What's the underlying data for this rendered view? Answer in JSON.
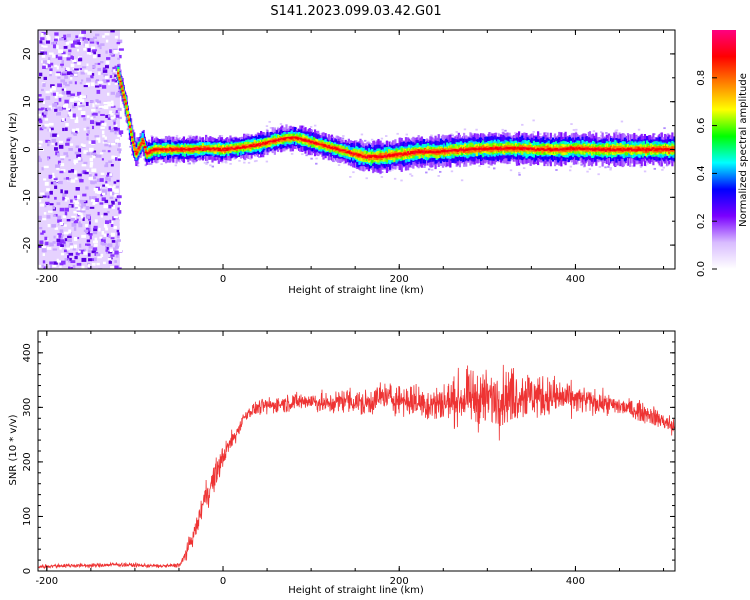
{
  "title": "S141.2023.099.03.42.G01",
  "chart_data": [
    {
      "type": "heatmap",
      "xlabel": "Height of straight line (km)",
      "ylabel": "Frequency (Hz)",
      "xlim": [
        -210,
        513
      ],
      "ylim": [
        -25,
        25
      ],
      "xticks": [
        -200,
        0,
        200,
        400
      ],
      "yticks": [
        -20,
        -10,
        0,
        10,
        20
      ],
      "colorbar": {
        "label": "Normalized spectral amplitude",
        "ticks": [
          0.0,
          0.2,
          0.4,
          0.6,
          0.8
        ],
        "range": [
          0,
          1
        ],
        "colors": [
          "#ffffff",
          "#d8bbff",
          "#7a00ff",
          "#0000ff",
          "#00ffff",
          "#00ff00",
          "#ffff00",
          "#ff8000",
          "#ff0000",
          "#ff0080"
        ]
      },
      "noise_region": {
        "x": [
          -210,
          -117
        ],
        "y": [
          -25,
          25
        ]
      },
      "ridge": {
        "x": [
          -120,
          -112,
          -105,
          -100,
          -96,
          -92,
          -88,
          -80,
          -60,
          -40,
          -20,
          0,
          20,
          40,
          60,
          80,
          100,
          120,
          140,
          160,
          180,
          200,
          220,
          240,
          260,
          280,
          300,
          320,
          340,
          360,
          380,
          400,
          420,
          440,
          460,
          480,
          500,
          513
        ],
        "y": [
          16,
          10,
          3,
          -1,
          0.5,
          2,
          -1,
          0,
          0,
          0,
          0.2,
          0,
          0.5,
          1,
          2,
          2.5,
          1.5,
          0.5,
          -0.5,
          -1.5,
          -1.5,
          -1,
          -0.5,
          -0.5,
          -0.2,
          0,
          0.2,
          0.3,
          0.2,
          0,
          0,
          0.2,
          0,
          0,
          0,
          0,
          0,
          0
        ]
      }
    },
    {
      "type": "line",
      "color": "#ee3333",
      "xlabel": "Height of straight line (km)",
      "ylabel": "SNR (10 * v/v)",
      "xlim": [
        -210,
        513
      ],
      "ylim": [
        0,
        440
      ],
      "xticks": [
        -200,
        0,
        200,
        400
      ],
      "yticks": [
        0,
        100,
        200,
        300,
        400
      ],
      "series": [
        {
          "x": [
            -210,
            -180,
            -150,
            -120,
            -90,
            -70,
            -55,
            -48,
            -40,
            -30,
            -25,
            -20,
            -15,
            -10,
            -5,
            0,
            5,
            10,
            15,
            20,
            25,
            30,
            40,
            60,
            80,
            100,
            120,
            140,
            160,
            180,
            200,
            220,
            240,
            260,
            280,
            300,
            320,
            340,
            360,
            380,
            400,
            420,
            440,
            460,
            480,
            500,
            513
          ],
          "y": [
            8,
            10,
            10,
            12,
            10,
            9,
            10,
            12,
            40,
            80,
            110,
            140,
            150,
            170,
            190,
            210,
            225,
            240,
            250,
            270,
            285,
            292,
            300,
            305,
            310,
            312,
            305,
            315,
            305,
            320,
            315,
            310,
            305,
            312,
            318,
            315,
            320,
            325,
            320,
            318,
            315,
            310,
            305,
            298,
            290,
            275,
            262
          ],
          "amp": [
            4,
            4,
            4,
            5,
            4,
            4,
            4,
            6,
            15,
            20,
            25,
            25,
            30,
            30,
            30,
            25,
            20,
            18,
            15,
            15,
            15,
            12,
            15,
            18,
            18,
            20,
            22,
            25,
            28,
            30,
            32,
            35,
            40,
            45,
            55,
            60,
            60,
            55,
            45,
            40,
            30,
            25,
            20,
            20,
            20,
            20,
            20
          ]
        }
      ]
    }
  ]
}
